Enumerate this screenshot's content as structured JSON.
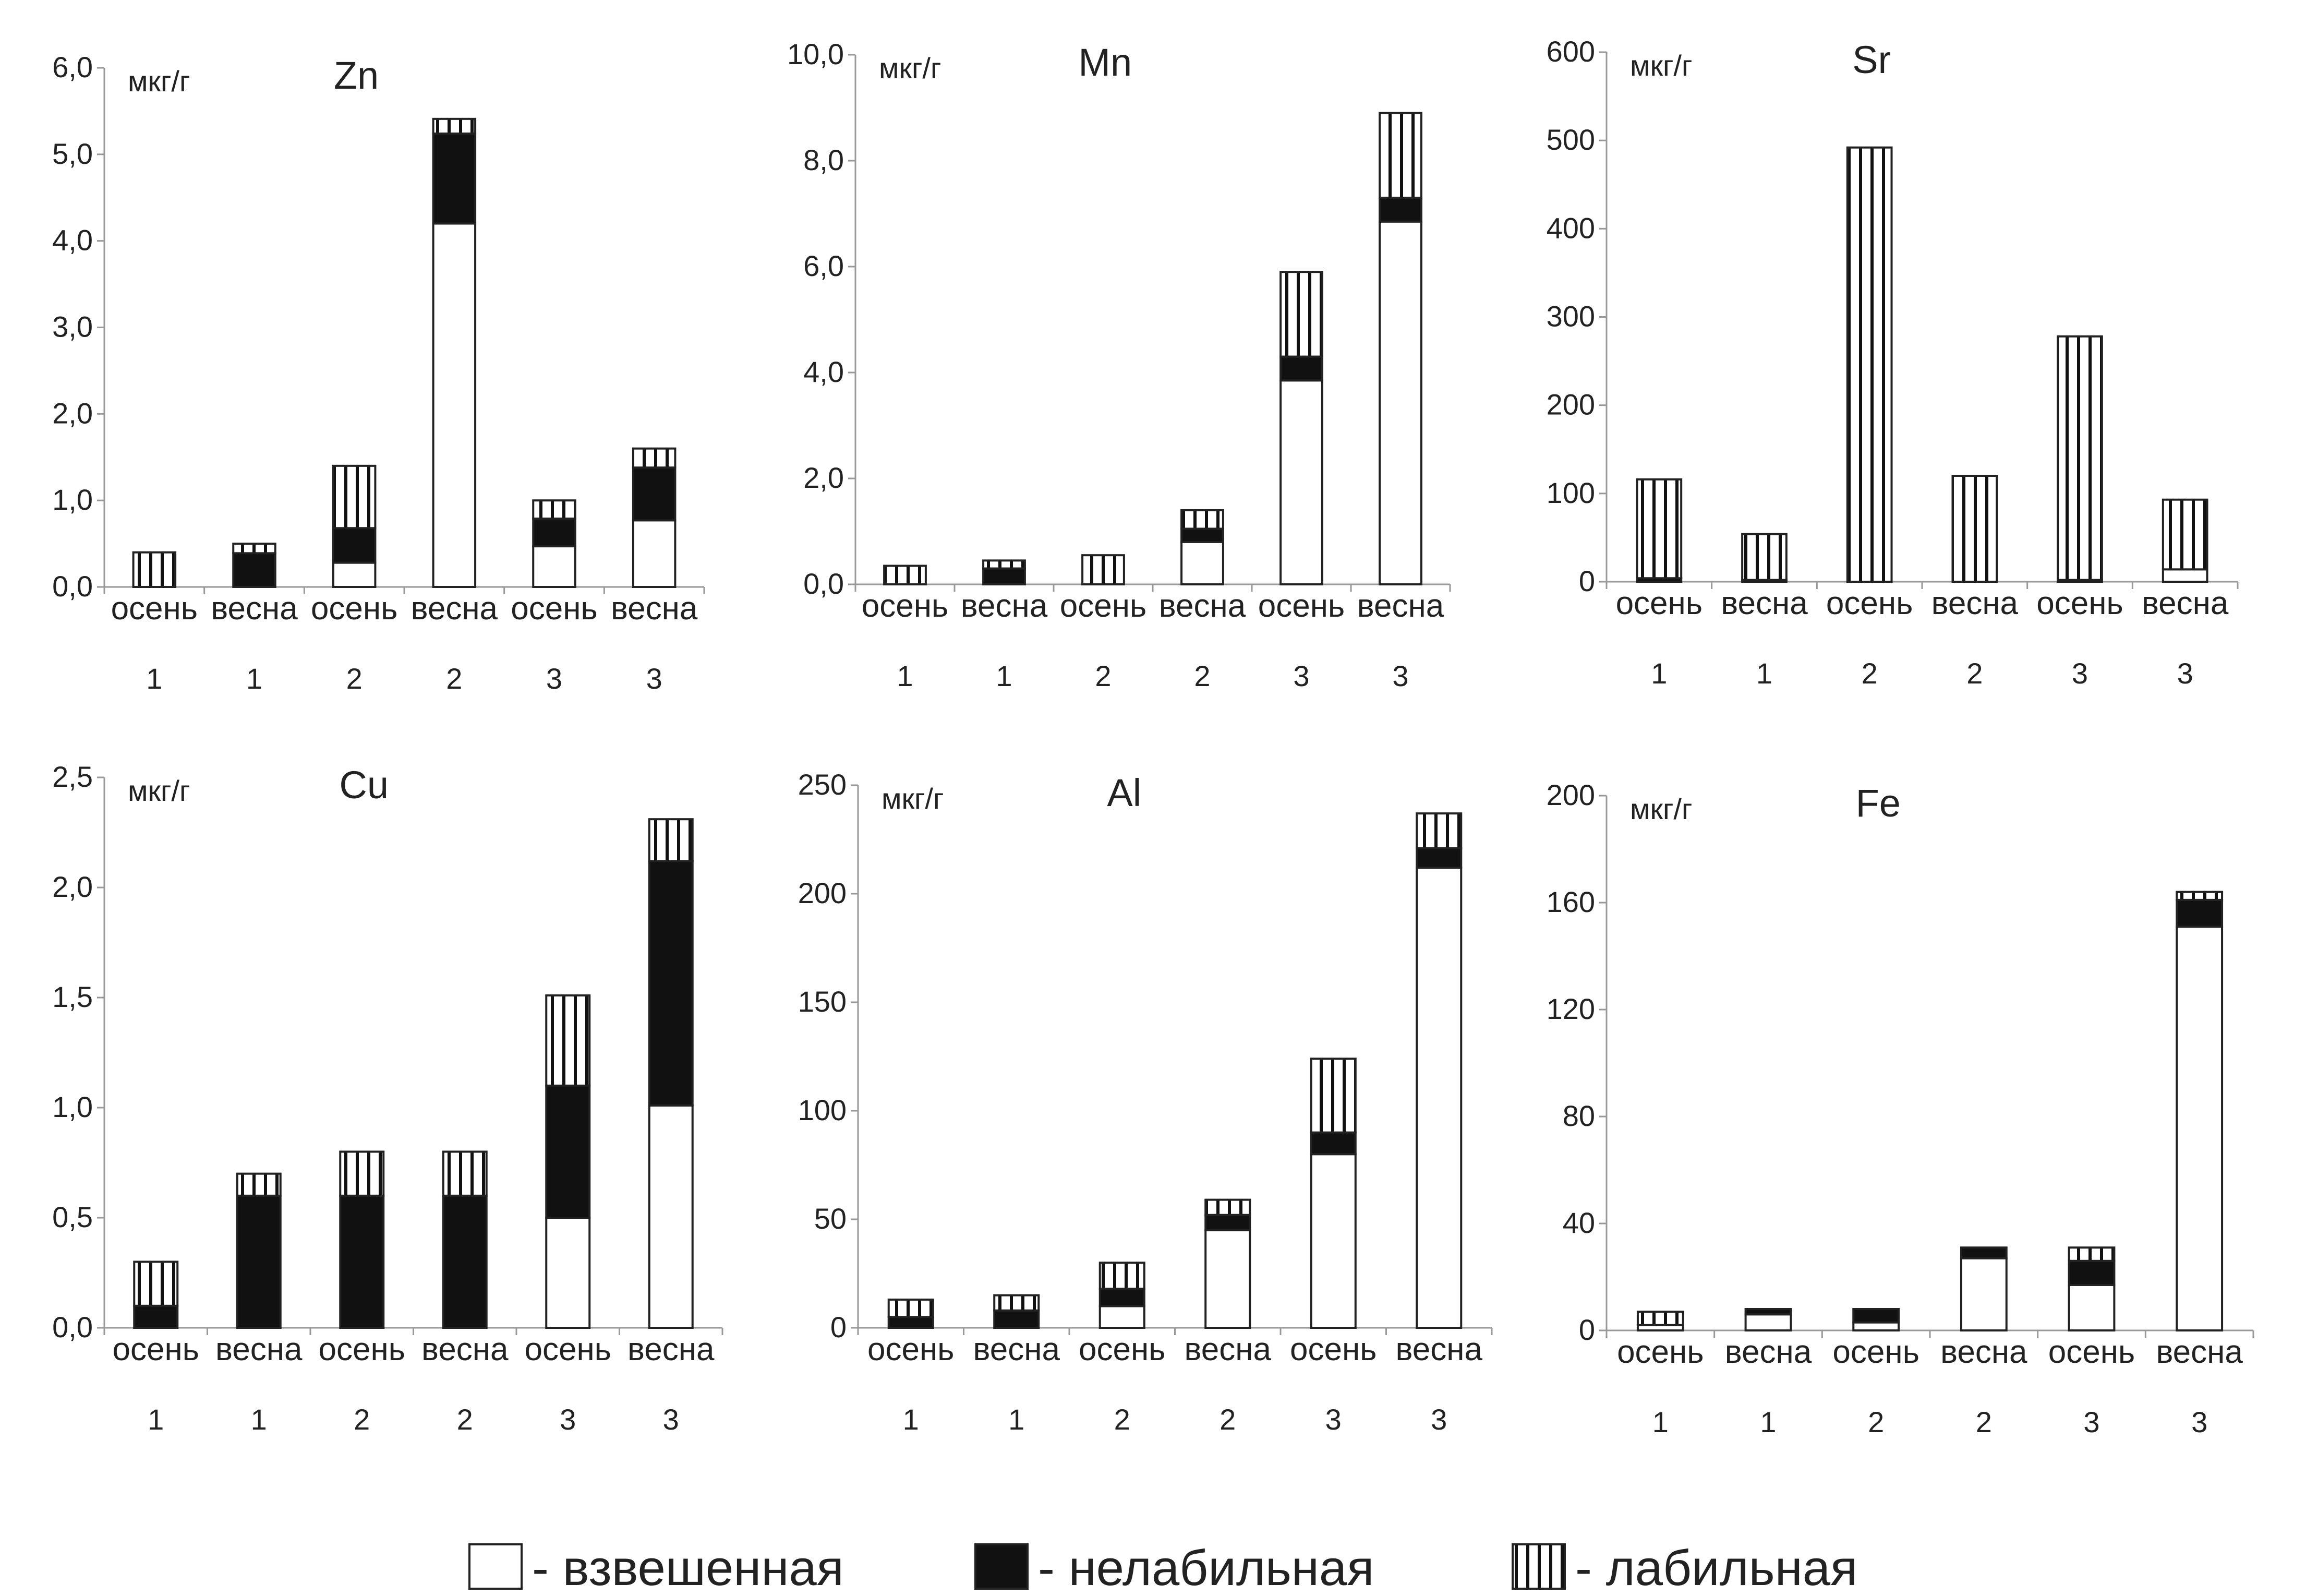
{
  "legend": [
    {
      "key": "suspended",
      "label": "- взвешенная"
    },
    {
      "key": "nonlabile",
      "label": "- нелабильная"
    },
    {
      "key": "labile",
      "label": "- лабильная"
    }
  ],
  "chart_data": [
    {
      "type": "bar",
      "stacked": true,
      "title": "Zn",
      "unit": "мкг/г",
      "ylim": [
        0,
        6
      ],
      "yticks": [
        "0,0",
        "1,0",
        "2,0",
        "3,0",
        "4,0",
        "5,0",
        "6,0"
      ],
      "categories": [
        "осень",
        "весна",
        "осень",
        "весна",
        "осень",
        "весна"
      ],
      "groups": [
        "1",
        "1",
        "2",
        "2",
        "3",
        "3"
      ],
      "series": [
        {
          "key": "suspended",
          "values": [
            0,
            0,
            0.28,
            4.2,
            0.47,
            0.77
          ]
        },
        {
          "key": "nonlabile",
          "values": [
            0,
            0.39,
            0.4,
            1.04,
            0.32,
            0.61
          ]
        },
        {
          "key": "labile",
          "values": [
            0.4,
            0.11,
            0.72,
            0.17,
            0.21,
            0.22
          ]
        }
      ]
    },
    {
      "type": "bar",
      "stacked": true,
      "title": "Mn",
      "unit": "мкг/г",
      "ylim": [
        0,
        10
      ],
      "yticks": [
        "0,0",
        "2,0",
        "4,0",
        "6,0",
        "8,0",
        "10,0"
      ],
      "categories": [
        "осень",
        "весна",
        "осень",
        "весна",
        "осень",
        "весна"
      ],
      "groups": [
        "1",
        "1",
        "2",
        "2",
        "3",
        "3"
      ],
      "series": [
        {
          "key": "suspended",
          "values": [
            0,
            0,
            0,
            0.8,
            3.85,
            6.85
          ]
        },
        {
          "key": "nonlabile",
          "values": [
            0,
            0.3,
            0,
            0.25,
            0.45,
            0.45
          ]
        },
        {
          "key": "labile",
          "values": [
            0.35,
            0.15,
            0.55,
            0.35,
            1.6,
            1.6
          ]
        }
      ]
    },
    {
      "type": "bar",
      "stacked": true,
      "title": "Sr",
      "unit": "мкг/г",
      "ylim": [
        0,
        600
      ],
      "yticks": [
        "0",
        "100",
        "200",
        "300",
        "400",
        "500",
        "600"
      ],
      "categories": [
        "осень",
        "весна",
        "осень",
        "весна",
        "осень",
        "весна"
      ],
      "groups": [
        "1",
        "1",
        "2",
        "2",
        "3",
        "3"
      ],
      "series": [
        {
          "key": "suspended",
          "values": [
            0,
            0,
            0,
            0,
            0,
            14
          ]
        },
        {
          "key": "nonlabile",
          "values": [
            4,
            2,
            0,
            0,
            2,
            0
          ]
        },
        {
          "key": "labile",
          "values": [
            112,
            52,
            492,
            120,
            276,
            79
          ]
        }
      ]
    },
    {
      "type": "bar",
      "stacked": true,
      "title": "Cu",
      "unit": "мкг/г",
      "ylim": [
        0,
        2.5
      ],
      "yticks": [
        "0,0",
        "0,5",
        "1,0",
        "1,5",
        "2,0",
        "2,5"
      ],
      "categories": [
        "осень",
        "весна",
        "осень",
        "весна",
        "осень",
        "весна"
      ],
      "groups": [
        "1",
        "1",
        "2",
        "2",
        "3",
        "3"
      ],
      "series": [
        {
          "key": "suspended",
          "values": [
            0,
            0,
            0,
            0,
            0.5,
            1.01
          ]
        },
        {
          "key": "nonlabile",
          "values": [
            0.1,
            0.6,
            0.6,
            0.6,
            0.6,
            1.11
          ]
        },
        {
          "key": "labile",
          "values": [
            0.2,
            0.1,
            0.2,
            0.2,
            0.41,
            0.19
          ]
        }
      ]
    },
    {
      "type": "bar",
      "stacked": true,
      "title": "Al",
      "unit": "мкг/г",
      "ylim": [
        0,
        250
      ],
      "yticks": [
        "0",
        "50",
        "100",
        "150",
        "200",
        "250"
      ],
      "categories": [
        "осень",
        "весна",
        "осень",
        "весна",
        "осень",
        "весна"
      ],
      "groups": [
        "1",
        "1",
        "2",
        "2",
        "3",
        "3"
      ],
      "series": [
        {
          "key": "suspended",
          "values": [
            0,
            0,
            10,
            45,
            80,
            212
          ]
        },
        {
          "key": "nonlabile",
          "values": [
            5,
            8,
            8,
            7,
            10,
            9
          ]
        },
        {
          "key": "labile",
          "values": [
            8,
            7,
            12,
            7,
            34,
            16
          ]
        }
      ]
    },
    {
      "type": "bar",
      "stacked": true,
      "title": "Fe",
      "unit": "мкг/г",
      "ylim": [
        0,
        200
      ],
      "yticks": [
        "0",
        "40",
        "80",
        "120",
        "160",
        "200"
      ],
      "categories": [
        "осень",
        "весна",
        "осень",
        "весна",
        "осень",
        "весна"
      ],
      "groups": [
        "1",
        "1",
        "2",
        "2",
        "3",
        "3"
      ],
      "series": [
        {
          "key": "suspended",
          "values": [
            2,
            6,
            3,
            27,
            17,
            151
          ]
        },
        {
          "key": "nonlabile",
          "values": [
            0,
            2,
            5,
            4,
            9,
            10
          ]
        },
        {
          "key": "labile",
          "values": [
            5,
            0,
            0,
            0,
            5,
            3
          ]
        }
      ]
    }
  ]
}
